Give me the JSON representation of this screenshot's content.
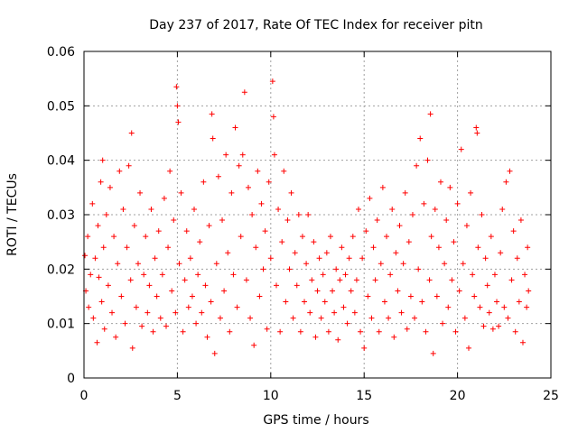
{
  "chart_data": {
    "type": "scatter",
    "title": "Day 237 of 2017, Rate Of TEC Index for receiver pitn",
    "xlabel": "GPS time / hours",
    "ylabel": "ROTI / TECUs",
    "xlim": [
      0,
      25
    ],
    "ylim": [
      0,
      0.06
    ],
    "x_ticks": [
      0,
      5,
      10,
      15,
      20,
      25
    ],
    "y_ticks": [
      0,
      0.01,
      0.02,
      0.03,
      0.04,
      0.05,
      0.06
    ],
    "x_tick_labels": [
      "0",
      "5",
      "10",
      "15",
      "20",
      "25"
    ],
    "y_tick_labels": [
      "0",
      "0.01",
      "0.02",
      "0.03",
      "0.04",
      "0.05",
      "0.06"
    ],
    "grid": true,
    "marker": "plus",
    "color": "#ff0000",
    "series": [
      {
        "name": "",
        "points": [
          [
            0.05,
            0.0225
          ],
          [
            0.1,
            0.016
          ],
          [
            0.2,
            0.026
          ],
          [
            0.25,
            0.013
          ],
          [
            0.35,
            0.019
          ],
          [
            0.45,
            0.032
          ],
          [
            0.5,
            0.011
          ],
          [
            0.6,
            0.022
          ],
          [
            0.7,
            0.0065
          ],
          [
            0.75,
            0.028
          ],
          [
            0.8,
            0.0185
          ],
          [
            0.9,
            0.036
          ],
          [
            0.95,
            0.014
          ],
          [
            1.0,
            0.04
          ],
          [
            1.05,
            0.024
          ],
          [
            1.1,
            0.009
          ],
          [
            1.2,
            0.03
          ],
          [
            1.3,
            0.017
          ],
          [
            1.4,
            0.035
          ],
          [
            1.5,
            0.012
          ],
          [
            1.6,
            0.026
          ],
          [
            1.7,
            0.0075
          ],
          [
            1.8,
            0.021
          ],
          [
            1.9,
            0.038
          ],
          [
            2.0,
            0.015
          ],
          [
            2.1,
            0.031
          ],
          [
            2.2,
            0.01
          ],
          [
            2.3,
            0.024
          ],
          [
            2.4,
            0.039
          ],
          [
            2.5,
            0.018
          ],
          [
            2.55,
            0.045
          ],
          [
            2.6,
            0.0055
          ],
          [
            2.7,
            0.028
          ],
          [
            2.8,
            0.013
          ],
          [
            2.9,
            0.021
          ],
          [
            3.0,
            0.034
          ],
          [
            3.1,
            0.0095
          ],
          [
            3.2,
            0.019
          ],
          [
            3.3,
            0.026
          ],
          [
            3.4,
            0.012
          ],
          [
            3.5,
            0.017
          ],
          [
            3.6,
            0.031
          ],
          [
            3.7,
            0.0085
          ],
          [
            3.8,
            0.022
          ],
          [
            3.9,
            0.015
          ],
          [
            4.0,
            0.027
          ],
          [
            4.1,
            0.011
          ],
          [
            4.2,
            0.019
          ],
          [
            4.3,
            0.033
          ],
          [
            4.4,
            0.0095
          ],
          [
            4.5,
            0.024
          ],
          [
            4.6,
            0.038
          ],
          [
            4.7,
            0.016
          ],
          [
            4.8,
            0.029
          ],
          [
            4.9,
            0.012
          ],
          [
            4.95,
            0.0535
          ],
          [
            5.0,
            0.05
          ],
          [
            5.05,
            0.047
          ],
          [
            5.1,
            0.021
          ],
          [
            5.2,
            0.034
          ],
          [
            5.3,
            0.0085
          ],
          [
            5.4,
            0.018
          ],
          [
            5.5,
            0.027
          ],
          [
            5.6,
            0.013
          ],
          [
            5.7,
            0.022
          ],
          [
            5.8,
            0.015
          ],
          [
            5.9,
            0.031
          ],
          [
            6.0,
            0.01
          ],
          [
            6.1,
            0.019
          ],
          [
            6.2,
            0.025
          ],
          [
            6.3,
            0.012
          ],
          [
            6.4,
            0.036
          ],
          [
            6.5,
            0.017
          ],
          [
            6.6,
            0.0075
          ],
          [
            6.7,
            0.028
          ],
          [
            6.8,
            0.014
          ],
          [
            6.85,
            0.0485
          ],
          [
            6.9,
            0.044
          ],
          [
            7.0,
            0.0045
          ],
          [
            7.1,
            0.021
          ],
          [
            7.2,
            0.037
          ],
          [
            7.3,
            0.011
          ],
          [
            7.4,
            0.029
          ],
          [
            7.5,
            0.016
          ],
          [
            7.6,
            0.041
          ],
          [
            7.7,
            0.023
          ],
          [
            7.8,
            0.0085
          ],
          [
            7.9,
            0.034
          ],
          [
            8.0,
            0.019
          ],
          [
            8.1,
            0.046
          ],
          [
            8.2,
            0.013
          ],
          [
            8.3,
            0.039
          ],
          [
            8.4,
            0.026
          ],
          [
            8.5,
            0.041
          ],
          [
            8.6,
            0.0525
          ],
          [
            8.7,
            0.018
          ],
          [
            8.8,
            0.035
          ],
          [
            8.9,
            0.011
          ],
          [
            9.0,
            0.03
          ],
          [
            9.1,
            0.006
          ],
          [
            9.2,
            0.024
          ],
          [
            9.3,
            0.038
          ],
          [
            9.4,
            0.015
          ],
          [
            9.5,
            0.032
          ],
          [
            9.6,
            0.02
          ],
          [
            9.7,
            0.027
          ],
          [
            9.8,
            0.009
          ],
          [
            9.9,
            0.036
          ],
          [
            10.0,
            0.022
          ],
          [
            10.1,
            0.0545
          ],
          [
            10.15,
            0.048
          ],
          [
            10.2,
            0.041
          ],
          [
            10.3,
            0.017
          ],
          [
            10.4,
            0.031
          ],
          [
            10.5,
            0.0085
          ],
          [
            10.6,
            0.025
          ],
          [
            10.7,
            0.038
          ],
          [
            10.8,
            0.014
          ],
          [
            10.9,
            0.029
          ],
          [
            11.0,
            0.02
          ],
          [
            11.1,
            0.034
          ],
          [
            11.2,
            0.011
          ],
          [
            11.3,
            0.023
          ],
          [
            11.4,
            0.017
          ],
          [
            11.5,
            0.03
          ],
          [
            11.6,
            0.0085
          ],
          [
            11.7,
            0.026
          ],
          [
            11.8,
            0.014
          ],
          [
            11.9,
            0.021
          ],
          [
            12.0,
            0.03
          ],
          [
            12.1,
            0.012
          ],
          [
            12.2,
            0.018
          ],
          [
            12.3,
            0.025
          ],
          [
            12.4,
            0.0075
          ],
          [
            12.5,
            0.016
          ],
          [
            12.6,
            0.022
          ],
          [
            12.7,
            0.011
          ],
          [
            12.8,
            0.019
          ],
          [
            12.9,
            0.014
          ],
          [
            13.0,
            0.023
          ],
          [
            13.1,
            0.0085
          ],
          [
            13.2,
            0.026
          ],
          [
            13.3,
            0.016
          ],
          [
            13.4,
            0.012
          ],
          [
            13.5,
            0.02
          ],
          [
            13.6,
            0.007
          ],
          [
            13.7,
            0.018
          ],
          [
            13.8,
            0.024
          ],
          [
            13.9,
            0.013
          ],
          [
            14.0,
            0.019
          ],
          [
            14.1,
            0.01
          ],
          [
            14.2,
            0.022
          ],
          [
            14.3,
            0.016
          ],
          [
            14.4,
            0.026
          ],
          [
            14.5,
            0.012
          ],
          [
            14.6,
            0.018
          ],
          [
            14.7,
            0.031
          ],
          [
            14.8,
            0.0085
          ],
          [
            14.9,
            0.022
          ],
          [
            15.0,
            0.0055
          ],
          [
            15.1,
            0.027
          ],
          [
            15.2,
            0.015
          ],
          [
            15.3,
            0.033
          ],
          [
            15.4,
            0.011
          ],
          [
            15.5,
            0.024
          ],
          [
            15.6,
            0.018
          ],
          [
            15.7,
            0.029
          ],
          [
            15.8,
            0.0085
          ],
          [
            15.9,
            0.021
          ],
          [
            16.0,
            0.035
          ],
          [
            16.1,
            0.014
          ],
          [
            16.2,
            0.026
          ],
          [
            16.3,
            0.011
          ],
          [
            16.4,
            0.019
          ],
          [
            16.5,
            0.031
          ],
          [
            16.6,
            0.0075
          ],
          [
            16.7,
            0.023
          ],
          [
            16.8,
            0.016
          ],
          [
            16.9,
            0.028
          ],
          [
            17.0,
            0.012
          ],
          [
            17.1,
            0.021
          ],
          [
            17.2,
            0.034
          ],
          [
            17.3,
            0.009
          ],
          [
            17.4,
            0.025
          ],
          [
            17.5,
            0.015
          ],
          [
            17.6,
            0.03
          ],
          [
            17.7,
            0.011
          ],
          [
            17.8,
            0.039
          ],
          [
            17.9,
            0.02
          ],
          [
            18.0,
            0.044
          ],
          [
            18.1,
            0.014
          ],
          [
            18.2,
            0.032
          ],
          [
            18.3,
            0.0085
          ],
          [
            18.4,
            0.04
          ],
          [
            18.5,
            0.018
          ],
          [
            18.55,
            0.0485
          ],
          [
            18.6,
            0.026
          ],
          [
            18.7,
            0.0045
          ],
          [
            18.8,
            0.031
          ],
          [
            18.9,
            0.015
          ],
          [
            19.0,
            0.024
          ],
          [
            19.1,
            0.036
          ],
          [
            19.2,
            0.01
          ],
          [
            19.3,
            0.021
          ],
          [
            19.4,
            0.029
          ],
          [
            19.5,
            0.013
          ],
          [
            19.6,
            0.035
          ],
          [
            19.7,
            0.018
          ],
          [
            19.8,
            0.025
          ],
          [
            19.9,
            0.0085
          ],
          [
            20.0,
            0.032
          ],
          [
            20.1,
            0.016
          ],
          [
            20.2,
            0.042
          ],
          [
            20.3,
            0.021
          ],
          [
            20.4,
            0.011
          ],
          [
            20.5,
            0.028
          ],
          [
            20.6,
            0.0055
          ],
          [
            20.7,
            0.034
          ],
          [
            20.8,
            0.019
          ],
          [
            20.9,
            0.015
          ],
          [
            21.0,
            0.046
          ],
          [
            21.05,
            0.045
          ],
          [
            21.1,
            0.024
          ],
          [
            21.2,
            0.013
          ],
          [
            21.3,
            0.03
          ],
          [
            21.4,
            0.0095
          ],
          [
            21.5,
            0.022
          ],
          [
            21.6,
            0.017
          ],
          [
            21.7,
            0.012
          ],
          [
            21.8,
            0.026
          ],
          [
            21.9,
            0.009
          ],
          [
            22.0,
            0.019
          ],
          [
            22.1,
            0.014
          ],
          [
            22.2,
            0.0095
          ],
          [
            22.3,
            0.023
          ],
          [
            22.4,
            0.031
          ],
          [
            22.5,
            0.013
          ],
          [
            22.6,
            0.036
          ],
          [
            22.7,
            0.011
          ],
          [
            22.8,
            0.038
          ],
          [
            22.9,
            0.018
          ],
          [
            23.0,
            0.027
          ],
          [
            23.1,
            0.0085
          ],
          [
            23.2,
            0.022
          ],
          [
            23.3,
            0.014
          ],
          [
            23.4,
            0.029
          ],
          [
            23.5,
            0.0065
          ],
          [
            23.6,
            0.019
          ],
          [
            23.7,
            0.013
          ],
          [
            23.75,
            0.024
          ],
          [
            23.8,
            0.016
          ]
        ]
      }
    ]
  }
}
